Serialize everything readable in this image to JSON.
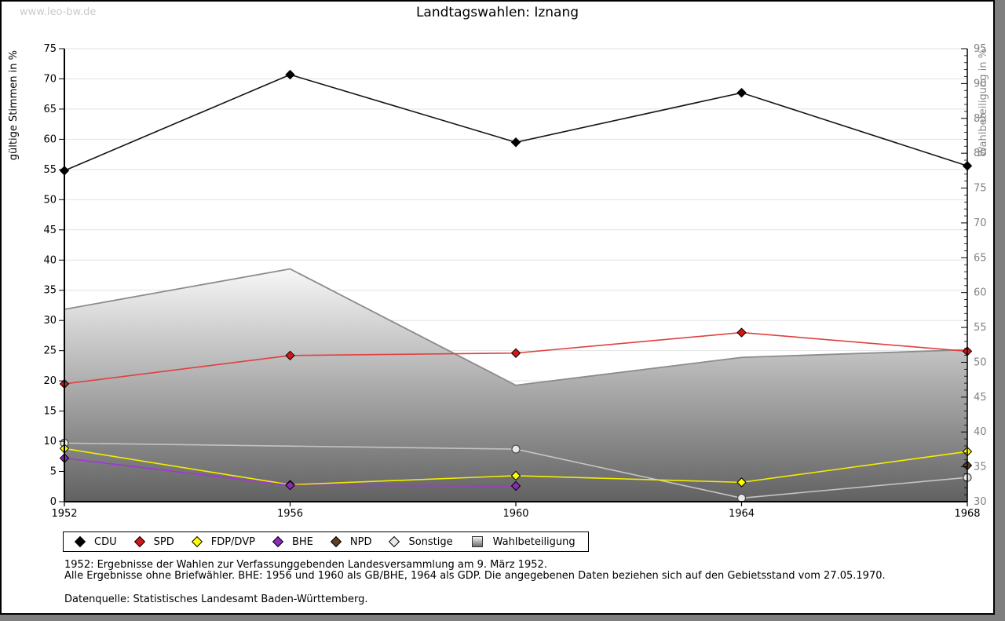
{
  "watermark": "www.leo-bw.de",
  "title": "Landtagswahlen: Iznang",
  "chart_data": {
    "type": "line",
    "title": "Landtagswahlen: Iznang",
    "x_ticks": [
      1952,
      1956,
      1960,
      1964,
      1968
    ],
    "x_range": [
      1952,
      1968
    ],
    "grid": "horizontal-only",
    "legend_position": "bottom",
    "left_axis": {
      "label": "gültige Stimmen in %",
      "min": 0,
      "max": 75,
      "tick_step": 5
    },
    "right_axis": {
      "label": "Wahlbeteiligung in %",
      "min": 30,
      "max": 95,
      "tick_step": 5,
      "minor_tick_step": 1
    },
    "series": [
      {
        "name": "Sonstige",
        "axis": "left",
        "marker": "circle",
        "line_color": "#c4c4c4",
        "marker_fill": "#e8e8e8",
        "marker_stroke": "#4a4a4a",
        "points": [
          [
            1952,
            9.7
          ],
          [
            1960,
            8.7
          ],
          [
            1964,
            0.6
          ],
          [
            1968,
            4.0
          ]
        ]
      },
      {
        "name": "FDP/DVP",
        "axis": "left",
        "marker": "diamond",
        "line_color": "#f2ee00",
        "marker_fill": "#ffff00",
        "marker_stroke": "#000000",
        "points": [
          [
            1952,
            8.8
          ],
          [
            1956,
            2.8
          ],
          [
            1960,
            4.3
          ],
          [
            1964,
            3.2
          ],
          [
            1968,
            8.3
          ]
        ]
      },
      {
        "name": "BHE",
        "axis": "left",
        "marker": "diamond",
        "line_color": "#a435d8",
        "marker_fill": "#8d2bb8",
        "marker_stroke": "#000000",
        "points": [
          [
            1952,
            7.2
          ],
          [
            1956,
            2.7
          ],
          [
            1960,
            2.6
          ]
        ]
      },
      {
        "name": "NPD",
        "axis": "left",
        "marker": "diamond",
        "line_color": "#5f4026",
        "marker_fill": "#5f4026",
        "marker_stroke": "#000000",
        "points": [
          [
            1968,
            6.0
          ]
        ]
      },
      {
        "name": "SPD",
        "axis": "left",
        "marker": "diamond",
        "line_color": "#e04040",
        "marker_fill": "#d01818",
        "marker_stroke": "#000000",
        "points": [
          [
            1952,
            19.5
          ],
          [
            1956,
            24.2
          ],
          [
            1960,
            24.6
          ],
          [
            1964,
            28.0
          ],
          [
            1968,
            24.9
          ]
        ]
      },
      {
        "name": "CDU",
        "axis": "left",
        "marker": "diamond",
        "line_color": "#141414",
        "marker_fill": "#000000",
        "marker_stroke": "#000000",
        "points": [
          [
            1952,
            54.8
          ],
          [
            1956,
            70.7
          ],
          [
            1960,
            59.5
          ],
          [
            1964,
            67.7
          ],
          [
            1968,
            55.6
          ]
        ]
      }
    ],
    "area_series": {
      "name": "Wahlbeteiligung",
      "axis": "right",
      "border_color": "#8c8c8c",
      "fill_top": "#fafafa",
      "fill_bottom": "#616161",
      "points": [
        [
          1952,
          57.6
        ],
        [
          1956,
          63.4
        ],
        [
          1960,
          46.7
        ],
        [
          1964,
          50.7
        ],
        [
          1968,
          51.8
        ]
      ]
    },
    "legend_order": [
      "CDU",
      "SPD",
      "FDP/DVP",
      "BHE",
      "NPD",
      "Sonstige",
      "Wahlbeteiligung"
    ]
  },
  "footer": {
    "line1": "1952: Ergebnisse der Wahlen zur Verfassunggebenden Landesversammlung am 9. März 1952.",
    "line2": "Alle Ergebnisse ohne Briefwähler. BHE: 1956 und 1960 als GB/BHE, 1964 als GDP. Die angegebenen Daten beziehen sich auf den Gebietsstand vom 27.05.1970.",
    "source": "Datenquelle: Statistisches Landesamt Baden-Württemberg."
  }
}
